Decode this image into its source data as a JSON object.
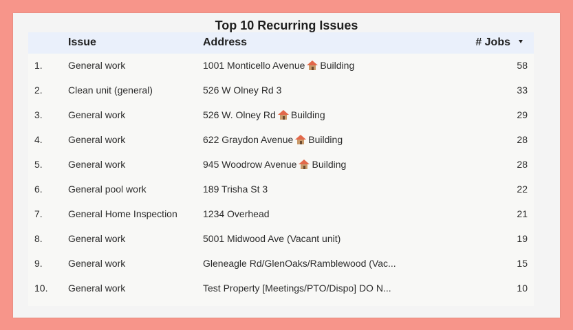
{
  "table": {
    "title": "Top 10 Recurring Issues",
    "columns": {
      "issue": "Issue",
      "address": "Address",
      "jobs": "# Jobs"
    },
    "rows": [
      {
        "idx": "1.",
        "issue": "General work",
        "address": "1001 Monticello Avenue",
        "tag": "Building",
        "jobs": "58"
      },
      {
        "idx": "2.",
        "issue": "Clean unit (general)",
        "address": "526 W Olney Rd 3",
        "tag": "",
        "jobs": "33"
      },
      {
        "idx": "3.",
        "issue": "General work",
        "address": "526 W. Olney Rd",
        "tag": "Building",
        "jobs": "29"
      },
      {
        "idx": "4.",
        "issue": "General work",
        "address": "622 Graydon Avenue",
        "tag": "Building",
        "jobs": "28"
      },
      {
        "idx": "5.",
        "issue": "General work",
        "address": "945 Woodrow Avenue",
        "tag": "Building",
        "jobs": "28"
      },
      {
        "idx": "6.",
        "issue": "General pool work",
        "address": "189 Trisha St 3",
        "tag": "",
        "jobs": "22"
      },
      {
        "idx": "7.",
        "issue": "General Home Inspection",
        "address": "1234 Overhead",
        "tag": "",
        "jobs": "21"
      },
      {
        "idx": "8.",
        "issue": "General work",
        "address": "5001 Midwood Ave (Vacant unit)",
        "tag": "",
        "jobs": "19"
      },
      {
        "idx": "9.",
        "issue": "General work",
        "address": "Gleneagle Rd/GlenOaks/Ramblewood (Vac...",
        "tag": "",
        "jobs": "15"
      },
      {
        "idx": "10.",
        "issue": "General work",
        "address": "Test Property [Meetings/PTO/Dispo] DO N...",
        "tag": "",
        "jobs": "10"
      }
    ]
  },
  "icons": {
    "sort": "sort-descending-icon",
    "building": "house-icon"
  },
  "colors": {
    "background": "#f7958a",
    "header": "#eaf0fb"
  }
}
